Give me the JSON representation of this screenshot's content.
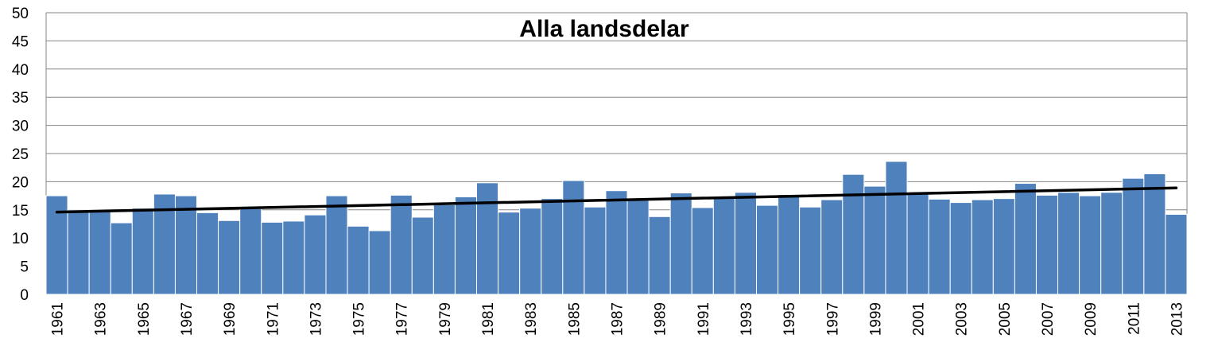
{
  "chart_data": {
    "type": "bar",
    "title": "Alla landsdelar",
    "xlabel": "",
    "ylabel": "",
    "ylim": [
      0,
      50
    ],
    "y_ticks": [
      0,
      5,
      10,
      15,
      20,
      25,
      30,
      35,
      40,
      45,
      50
    ],
    "grid": true,
    "legend": "none",
    "colors": {
      "bar": "#4f81bd",
      "trend": "#000000",
      "grid": "#868686"
    },
    "categories": [
      "1961",
      "1962",
      "1963",
      "1964",
      "1965",
      "1966",
      "1967",
      "1968",
      "1969",
      "1970",
      "1971",
      "1972",
      "1973",
      "1974",
      "1975",
      "1976",
      "1977",
      "1978",
      "1979",
      "1980",
      "1981",
      "1982",
      "1983",
      "1984",
      "1985",
      "1986",
      "1987",
      "1988",
      "1989",
      "1990",
      "1991",
      "1992",
      "1993",
      "1994",
      "1995",
      "1996",
      "1997",
      "1998",
      "1999",
      "2000",
      "2001",
      "2002",
      "2003",
      "2004",
      "2005",
      "2006",
      "2007",
      "2008",
      "2009",
      "2010",
      "2011",
      "2012",
      "2013"
    ],
    "x_tick_labels": [
      "1961",
      "1963",
      "1965",
      "1967",
      "1969",
      "1971",
      "1973",
      "1975",
      "1977",
      "1979",
      "1981",
      "1983",
      "1985",
      "1987",
      "1989",
      "1991",
      "1993",
      "1995",
      "1997",
      "1999",
      "2001",
      "2003",
      "2005",
      "2007",
      "2009",
      "2011",
      "2013"
    ],
    "series": [
      {
        "values": [
          17.5,
          15.0,
          15.0,
          12.7,
          15.3,
          17.8,
          17.5,
          14.5,
          13.1,
          15.2,
          12.8,
          13.0,
          14.1,
          17.5,
          12.1,
          11.3,
          17.6,
          13.7,
          15.9,
          17.3,
          19.8,
          14.6,
          15.3,
          17.0,
          20.2,
          15.5,
          18.4,
          16.7,
          13.8,
          18.0,
          15.4,
          17.3,
          18.1,
          15.8,
          17.7,
          15.5,
          16.8,
          21.3,
          19.2,
          23.6,
          17.8,
          16.9,
          16.3,
          16.8,
          17.0,
          19.7,
          17.6,
          18.1,
          17.5,
          18.1,
          20.6,
          21.4,
          14.2
        ]
      }
    ],
    "trendline": {
      "type": "linear",
      "start": 14.6,
      "end": 18.9
    }
  }
}
